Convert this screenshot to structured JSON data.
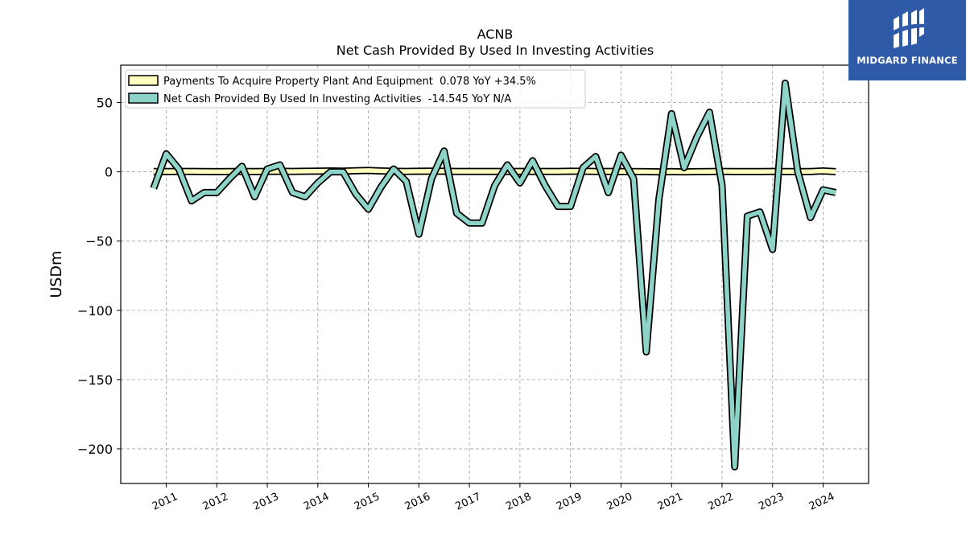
{
  "brand": {
    "name": "MIDGARD FINANCE",
    "color": "#2f5aa8"
  },
  "chart_data": {
    "type": "line",
    "title": "ACNB",
    "subtitle": "Net Cash Provided By Used In Investing Activities",
    "xlabel": "",
    "ylabel": "USDm",
    "ylim": [
      -225,
      77
    ],
    "xlim": [
      2010.1,
      2024.9
    ],
    "y_ticks": [
      50,
      0,
      -50,
      -100,
      -150,
      -200
    ],
    "y_tick_labels": [
      "50",
      "0",
      "−50",
      "−100",
      "−150",
      "−200"
    ],
    "x_ticks": [
      2011,
      2012,
      2013,
      2014,
      2015,
      2016,
      2017,
      2018,
      2019,
      2020,
      2021,
      2022,
      2023,
      2024
    ],
    "x_tick_labels": [
      "2011",
      "2012",
      "2013",
      "2014",
      "2015",
      "2016",
      "2017",
      "2018",
      "2019",
      "2020",
      "2021",
      "2022",
      "2023",
      "2024"
    ],
    "grid": true,
    "legend_position": "top-left",
    "series": [
      {
        "name": "Payments To Acquire Property Plant And Equipment  0.078 YoY +34.5%",
        "color": "#ffffc0",
        "x": [
          2010.75,
          2011.0,
          2011.25,
          2011.5,
          2011.75,
          2012.0,
          2012.25,
          2012.5,
          2012.75,
          2013.0,
          2013.25,
          2013.5,
          2013.75,
          2014.0,
          2014.25,
          2014.5,
          2014.75,
          2015.0,
          2015.25,
          2015.5,
          2015.75,
          2016.0,
          2016.25,
          2016.5,
          2016.75,
          2017.0,
          2017.25,
          2017.5,
          2017.75,
          2018.0,
          2018.25,
          2018.5,
          2018.75,
          2019.0,
          2019.25,
          2019.5,
          2019.75,
          2020.0,
          2020.25,
          2020.5,
          2020.75,
          2021.0,
          2021.25,
          2021.5,
          2021.75,
          2022.0,
          2022.25,
          2022.5,
          2022.75,
          2023.0,
          2023.25,
          2023.5,
          2023.75,
          2024.0,
          2024.25
        ],
        "values": [
          0.2,
          0.2,
          0.3,
          0.3,
          0.2,
          0.1,
          0.2,
          0.3,
          0.2,
          0.3,
          0.4,
          0.3,
          0.4,
          0.5,
          0.6,
          0.5,
          0.8,
          1.0,
          0.6,
          0.4,
          0.3,
          0.4,
          0.5,
          0.4,
          0.3,
          0.3,
          0.3,
          0.3,
          0.3,
          0.3,
          0.3,
          0.3,
          0.3,
          0.4,
          0.4,
          0.3,
          0.3,
          0.2,
          0.2,
          0.1,
          0.0,
          0.1,
          0.0,
          0.1,
          0.2,
          0.3,
          0.2,
          0.2,
          0.2,
          0.3,
          0.2,
          0.2,
          0.2,
          0.6,
          0.1
        ]
      },
      {
        "name": "Net Cash Provided By Used In Investing Activities  -14.545 YoY N/A",
        "color": "#8dd3c7",
        "x": [
          2010.75,
          2011.0,
          2011.25,
          2011.5,
          2011.75,
          2012.0,
          2012.25,
          2012.5,
          2012.75,
          2013.0,
          2013.25,
          2013.5,
          2013.75,
          2014.0,
          2014.25,
          2014.5,
          2014.75,
          2015.0,
          2015.25,
          2015.5,
          2015.75,
          2016.0,
          2016.25,
          2016.5,
          2016.75,
          2017.0,
          2017.25,
          2017.5,
          2017.75,
          2018.0,
          2018.25,
          2018.5,
          2018.75,
          2019.0,
          2019.25,
          2019.5,
          2019.75,
          2020.0,
          2020.25,
          2020.5,
          2020.75,
          2021.0,
          2021.25,
          2021.5,
          2021.75,
          2022.0,
          2022.25,
          2022.5,
          2022.75,
          2023.0,
          2023.25,
          2023.5,
          2023.75,
          2024.0,
          2024.25
        ],
        "values": [
          -12,
          13,
          2,
          -21,
          -15,
          -15,
          -5,
          4,
          -18,
          2,
          5,
          -15,
          -18,
          -8,
          0,
          0,
          -16,
          -27,
          -11,
          2,
          -7,
          -45,
          -5,
          15,
          -30,
          -37,
          -37,
          -10,
          5,
          -8,
          8,
          -10,
          -25,
          -25,
          3,
          11,
          -15,
          12,
          -5,
          -130,
          -20,
          42,
          3,
          25,
          43,
          -10,
          -213,
          -32,
          -29,
          -56,
          64,
          0,
          -33,
          -13,
          -15
        ]
      }
    ]
  }
}
